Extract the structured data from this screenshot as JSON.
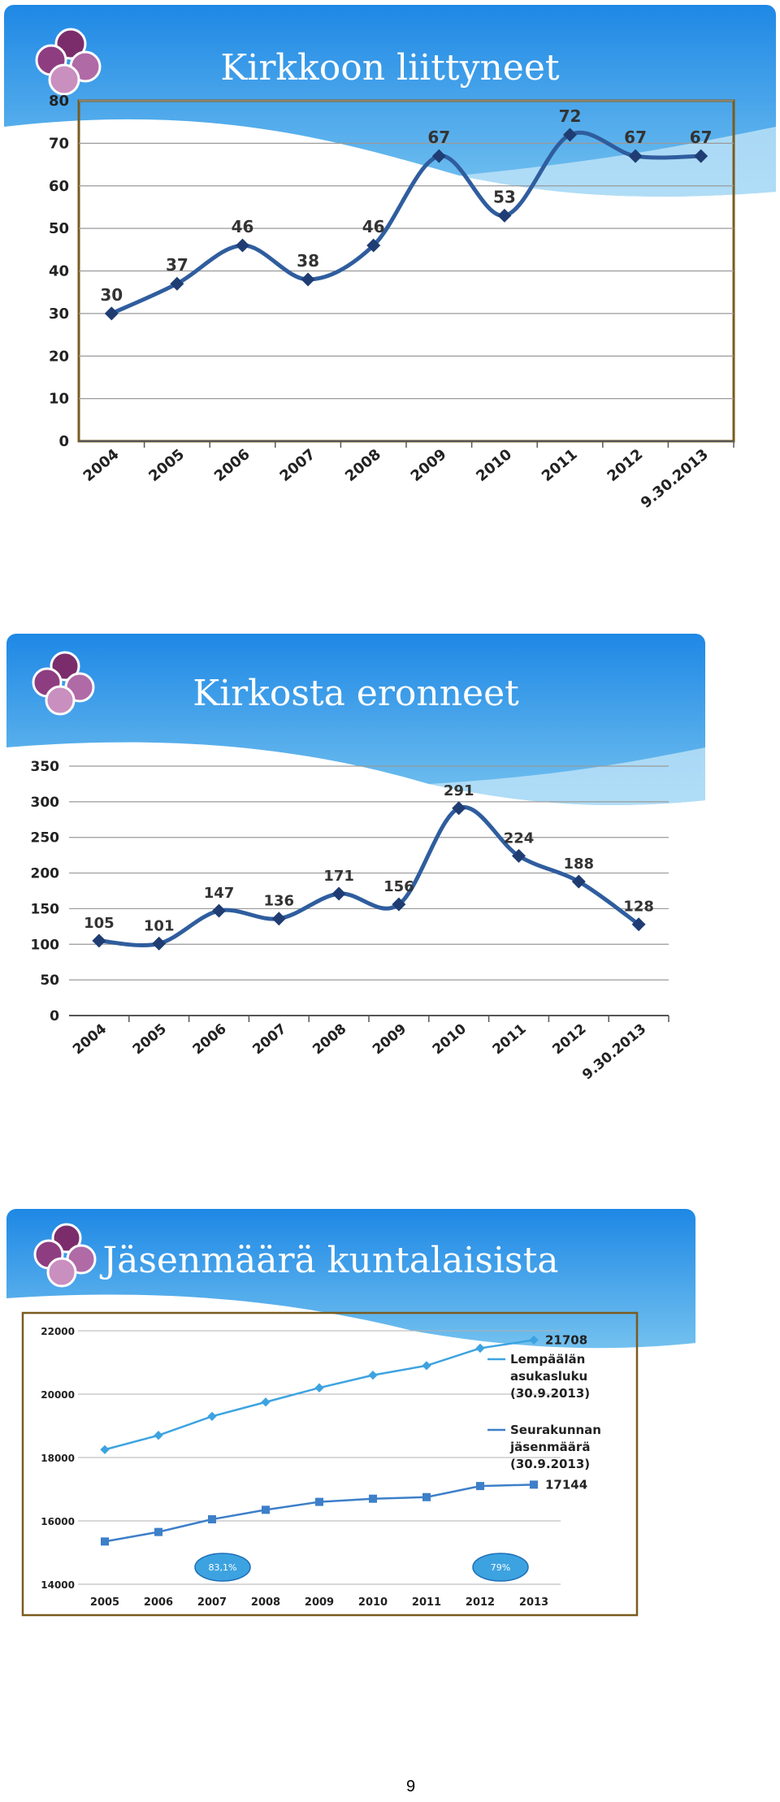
{
  "page_number": "9",
  "colors": {
    "sky": "#1e88e5",
    "sky_light": "#bfe3f8",
    "line_dark": "#2f5d9e",
    "frame": "#7a5c1e",
    "logo_purple": "#7b2d6b",
    "series_light": "#3da3e0",
    "series_blue": "#3d7fc9"
  },
  "slides": [
    {
      "title": "Kirkkoon liittyneet",
      "chart_data": {
        "type": "line",
        "categories": [
          "2004",
          "2005",
          "2006",
          "2007",
          "2008",
          "2009",
          "2010",
          "2011",
          "2012",
          "9.30.2013"
        ],
        "values": [
          30,
          37,
          46,
          38,
          46,
          67,
          53,
          72,
          67,
          67
        ],
        "ylim": [
          0,
          80
        ],
        "yticks": [
          "0",
          "10",
          "20",
          "30",
          "40",
          "50",
          "60",
          "70",
          "80"
        ],
        "data_labels": [
          "30",
          "37",
          "46",
          "38",
          "46",
          "67",
          "53",
          "72",
          "67",
          "67"
        ],
        "grid": true
      }
    },
    {
      "title": "Kirkosta eronneet",
      "chart_data": {
        "type": "line",
        "categories": [
          "2004",
          "2005",
          "2006",
          "2007",
          "2008",
          "2009",
          "2010",
          "2011",
          "2012",
          "9.30.2013"
        ],
        "values": [
          105,
          101,
          147,
          136,
          171,
          156,
          291,
          224,
          188,
          128
        ],
        "ylim": [
          0,
          350
        ],
        "yticks": [
          "0",
          "50",
          "100",
          "150",
          "200",
          "250",
          "300",
          "350"
        ],
        "data_labels": [
          "105",
          "101",
          "147",
          "136",
          "171",
          "156",
          "291",
          "224",
          "188",
          "128"
        ],
        "grid": true
      }
    },
    {
      "title": "Jäsenmäärä kuntalaisista",
      "chart_data": {
        "type": "line",
        "categories": [
          "2005",
          "2006",
          "2007",
          "2008",
          "2009",
          "2010",
          "2011",
          "2012",
          "2013"
        ],
        "ylim": [
          14000,
          22000
        ],
        "yticks": [
          "14000",
          "16000",
          "18000",
          "20000",
          "22000"
        ],
        "series": [
          {
            "name": "Lempäälän asukasluku (30.9.2013)",
            "values": [
              18250,
              18700,
              19300,
              19750,
              20200,
              20600,
              20900,
              21450,
              21708
            ]
          },
          {
            "name": "Seurakunnan jäsenmäärä (30.9.2013)",
            "values": [
              15350,
              15650,
              16050,
              16350,
              16600,
              16700,
              16750,
              17100,
              17144
            ]
          }
        ],
        "end_labels": [
          "21708",
          "17144"
        ],
        "annotations": [
          "83,1%",
          "79%"
        ],
        "legend": "right"
      }
    }
  ]
}
